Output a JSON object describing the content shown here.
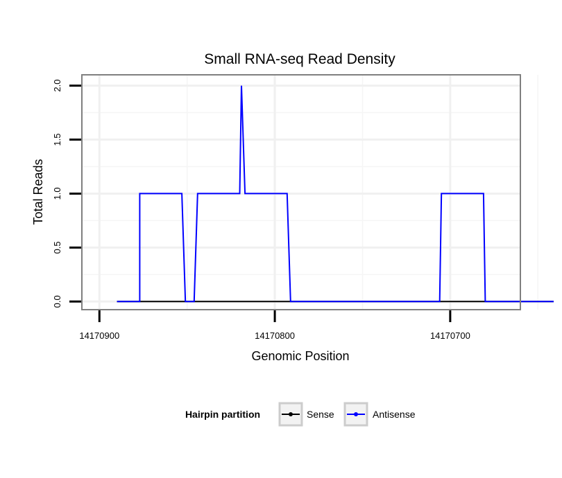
{
  "chart_data": {
    "type": "line",
    "title": "Small RNA-seq Read Density",
    "xlabel": "Genomic Position",
    "ylabel": "Total Reads",
    "x_reversed": true,
    "xlim": [
      14170910,
      14170660
    ],
    "ylim": [
      -0.075,
      2.1
    ],
    "x_ticks": [
      14170900,
      14170800,
      14170700
    ],
    "x_tick_labels": [
      "14170900",
      "14170800",
      "14170700"
    ],
    "y_ticks": [
      0,
      0.5,
      1,
      1.5,
      2
    ],
    "y_tick_labels": [
      "0.0",
      "0.5",
      "1.0",
      "1.5",
      "2.0"
    ],
    "grid": true,
    "legend": {
      "title": "Hairpin partition",
      "placement": "bottom",
      "entries": [
        "Sense",
        "Antisense"
      ]
    },
    "series": [
      {
        "name": "Sense",
        "color": "#000000",
        "x": [
          14170890,
          14170641
        ],
        "y": [
          0,
          0
        ]
      },
      {
        "name": "Antisense",
        "color": "#0000ff",
        "x": [
          14170890,
          14170877,
          14170877,
          14170853,
          14170851,
          14170846,
          14170844,
          14170820,
          14170819,
          14170817,
          14170817,
          14170793,
          14170791,
          14170706,
          14170705,
          14170681,
          14170680,
          14170641
        ],
        "y": [
          0,
          0,
          1,
          1,
          0,
          0,
          1,
          1,
          2,
          1,
          1,
          1,
          0,
          0,
          1,
          1,
          0,
          0
        ]
      }
    ]
  }
}
